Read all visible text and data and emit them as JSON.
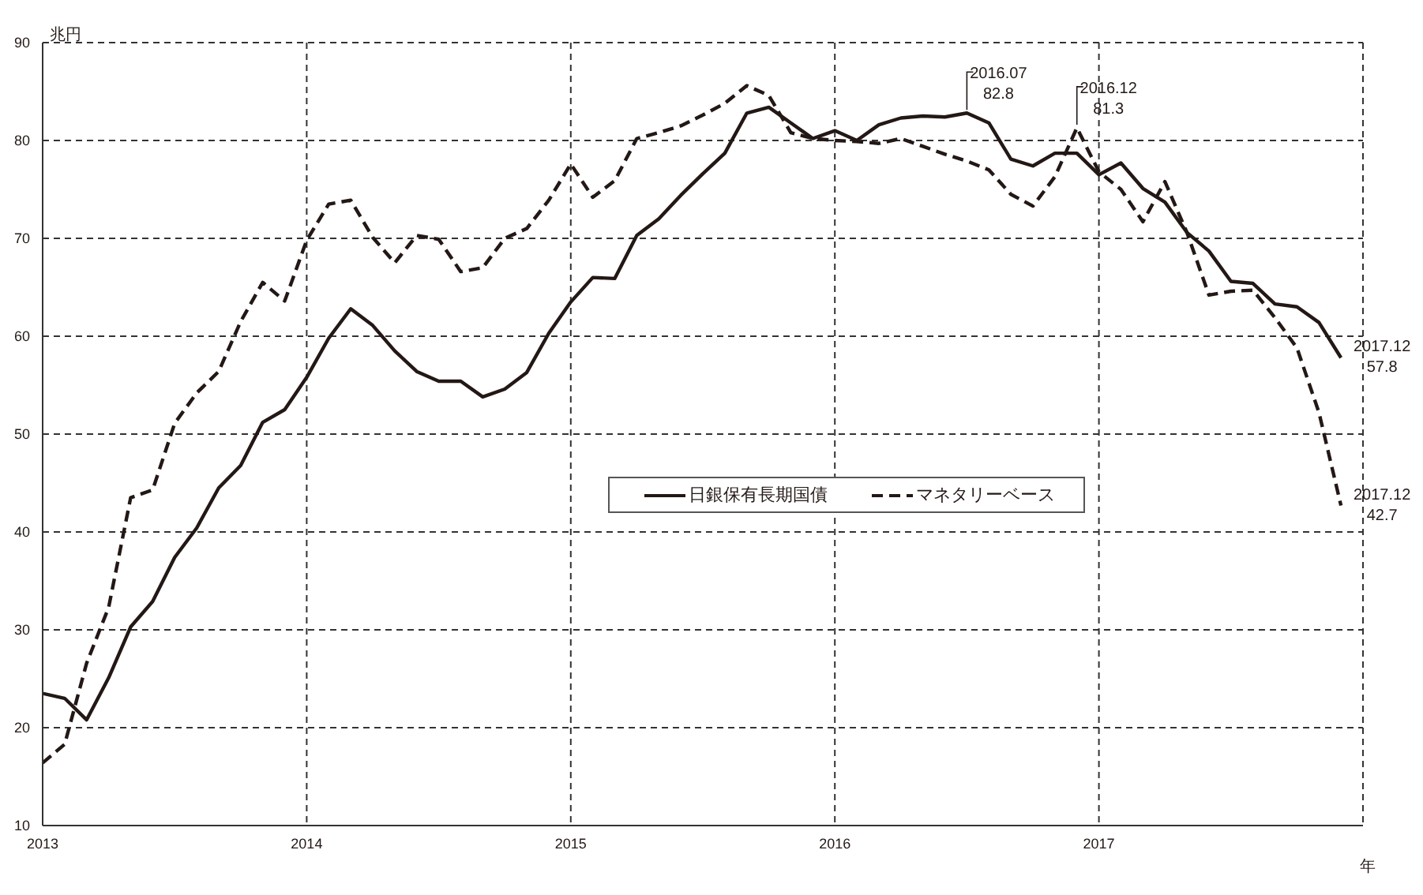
{
  "chart_data": {
    "type": "line",
    "ylabel": "兆円",
    "xlabel": "年",
    "x": [
      "2013-01",
      "2013-02",
      "2013-03",
      "2013-04",
      "2013-05",
      "2013-06",
      "2013-07",
      "2013-08",
      "2013-09",
      "2013-10",
      "2013-11",
      "2013-12",
      "2014-01",
      "2014-02",
      "2014-03",
      "2014-04",
      "2014-05",
      "2014-06",
      "2014-07",
      "2014-08",
      "2014-09",
      "2014-10",
      "2014-11",
      "2014-12",
      "2015-01",
      "2015-02",
      "2015-03",
      "2015-04",
      "2015-05",
      "2015-06",
      "2015-07",
      "2015-08",
      "2015-09",
      "2015-10",
      "2015-11",
      "2015-12",
      "2016-01",
      "2016-02",
      "2016-03",
      "2016-04",
      "2016-05",
      "2016-06",
      "2016-07",
      "2016-08",
      "2016-09",
      "2016-10",
      "2016-11",
      "2016-12",
      "2017-01",
      "2017-02",
      "2017-03",
      "2017-04",
      "2017-05",
      "2017-06",
      "2017-07",
      "2017-08",
      "2017-09",
      "2017-10",
      "2017-11",
      "2017-12"
    ],
    "series": [
      {
        "name": "日銀保有長期国債",
        "color": "#231815",
        "line_style": "solid",
        "values": [
          23.5,
          23.0,
          20.8,
          25.1,
          30.3,
          32.9,
          37.4,
          40.4,
          44.5,
          46.8,
          51.2,
          52.5,
          55.8,
          59.8,
          62.8,
          61.1,
          58.5,
          56.4,
          55.4,
          55.4,
          53.8,
          54.6,
          56.3,
          60.3,
          63.5,
          66.0,
          65.9,
          70.3,
          72.0,
          74.4,
          76.6,
          78.7,
          82.8,
          83.4,
          81.8,
          80.2,
          81.0,
          80.0,
          81.6,
          82.3,
          82.5,
          82.4,
          82.8,
          81.8,
          78.1,
          77.4,
          78.7,
          78.7,
          76.5,
          77.7,
          75.1,
          73.7,
          70.6,
          68.7,
          65.6,
          65.4,
          63.3,
          63.0,
          61.4,
          57.8
        ]
      },
      {
        "name": "マネタリーベース",
        "color": "#231815",
        "line_style": "dashed",
        "values": [
          16.4,
          18.3,
          26.6,
          32.3,
          43.5,
          44.3,
          51.1,
          54.2,
          56.4,
          61.5,
          65.5,
          63.6,
          69.8,
          73.5,
          73.9,
          70.1,
          67.5,
          70.3,
          69.9,
          66.6,
          67.0,
          70.0,
          71.0,
          73.9,
          77.6,
          74.2,
          75.9,
          80.2,
          80.8,
          81.5,
          82.6,
          83.8,
          85.6,
          84.6,
          80.8,
          80.2,
          80.0,
          79.9,
          79.7,
          80.2,
          79.4,
          78.6,
          77.9,
          77.0,
          74.5,
          73.3,
          76.3,
          81.3,
          76.8,
          75.0,
          71.7,
          75.8,
          70.6,
          64.2,
          64.6,
          64.7,
          61.9,
          58.8,
          52.2,
          42.7
        ]
      }
    ],
    "xlim": [
      "2013",
      "2018"
    ],
    "xticks": [
      {
        "value": "2013",
        "label": "2013"
      },
      {
        "value": "2014",
        "label": "2014"
      },
      {
        "value": "2015",
        "label": "2015"
      },
      {
        "value": "2016",
        "label": "2016"
      },
      {
        "value": "2017",
        "label": "2017"
      }
    ],
    "ylim": [
      10,
      90
    ],
    "yticks": [
      10,
      20,
      30,
      40,
      50,
      60,
      70,
      80,
      90
    ],
    "grid": true,
    "legend": "center",
    "marker": "none",
    "annotations": [
      {
        "text": "2016.07\n82.8",
        "x": "2016-07",
        "y": 82.8
      },
      {
        "text": "2016.12\n81.3",
        "x": "2016-12",
        "y": 81.3
      },
      {
        "text": "2017.12\n57.8",
        "x": "2017-12",
        "y": 57.8
      },
      {
        "text": "2017.12\n42.7",
        "x": "2017-12",
        "y": 42.7
      }
    ]
  }
}
